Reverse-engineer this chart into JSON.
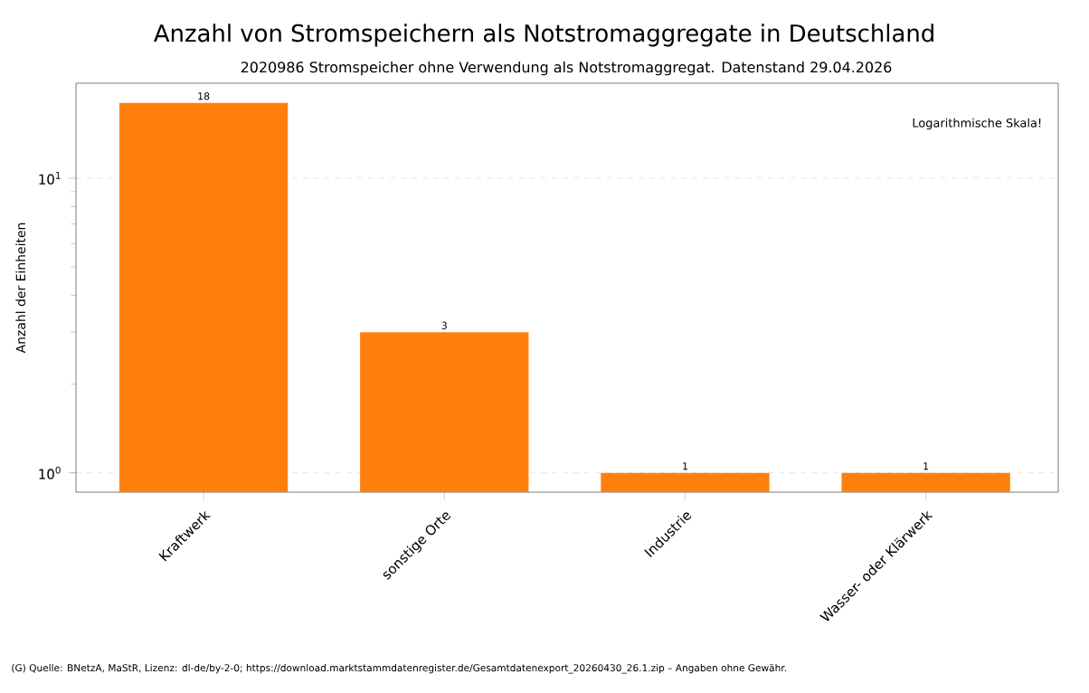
{
  "chart_data": {
    "type": "bar",
    "title": "Anzahl von Stromspeichern als Notstromaggregate in Deutschland",
    "subtitle": "2020986 Stromspeicher ohne Verwendung als Notstromaggregat. Datenstand 29.04.2026",
    "ylabel": "Anzahl der Einheiten",
    "categories": [
      "Kraftwerk",
      "sonstige Orte",
      "Industrie",
      "Wasser- oder Klärwerk"
    ],
    "values": [
      18,
      3,
      1,
      1
    ],
    "color": "#ff7f0e",
    "log": true,
    "ylim": [
      0.86,
      21
    ],
    "yticks": [
      {
        "value": 1,
        "label": "10$^{0}$"
      },
      {
        "value": 10,
        "label": "10$^{1}$"
      }
    ],
    "grid": "y",
    "data_labels": true,
    "annotations": [
      "Logarithmische Skala!",
      "(G) Quelle: BNetzA, MaStR, Lizenz: dl-de/by-2-0; https://download.marktstammdatenregister.de/Gesamtdatenexport_20260430_26.1.zip – Angaben ohne Gewähr."
    ]
  }
}
